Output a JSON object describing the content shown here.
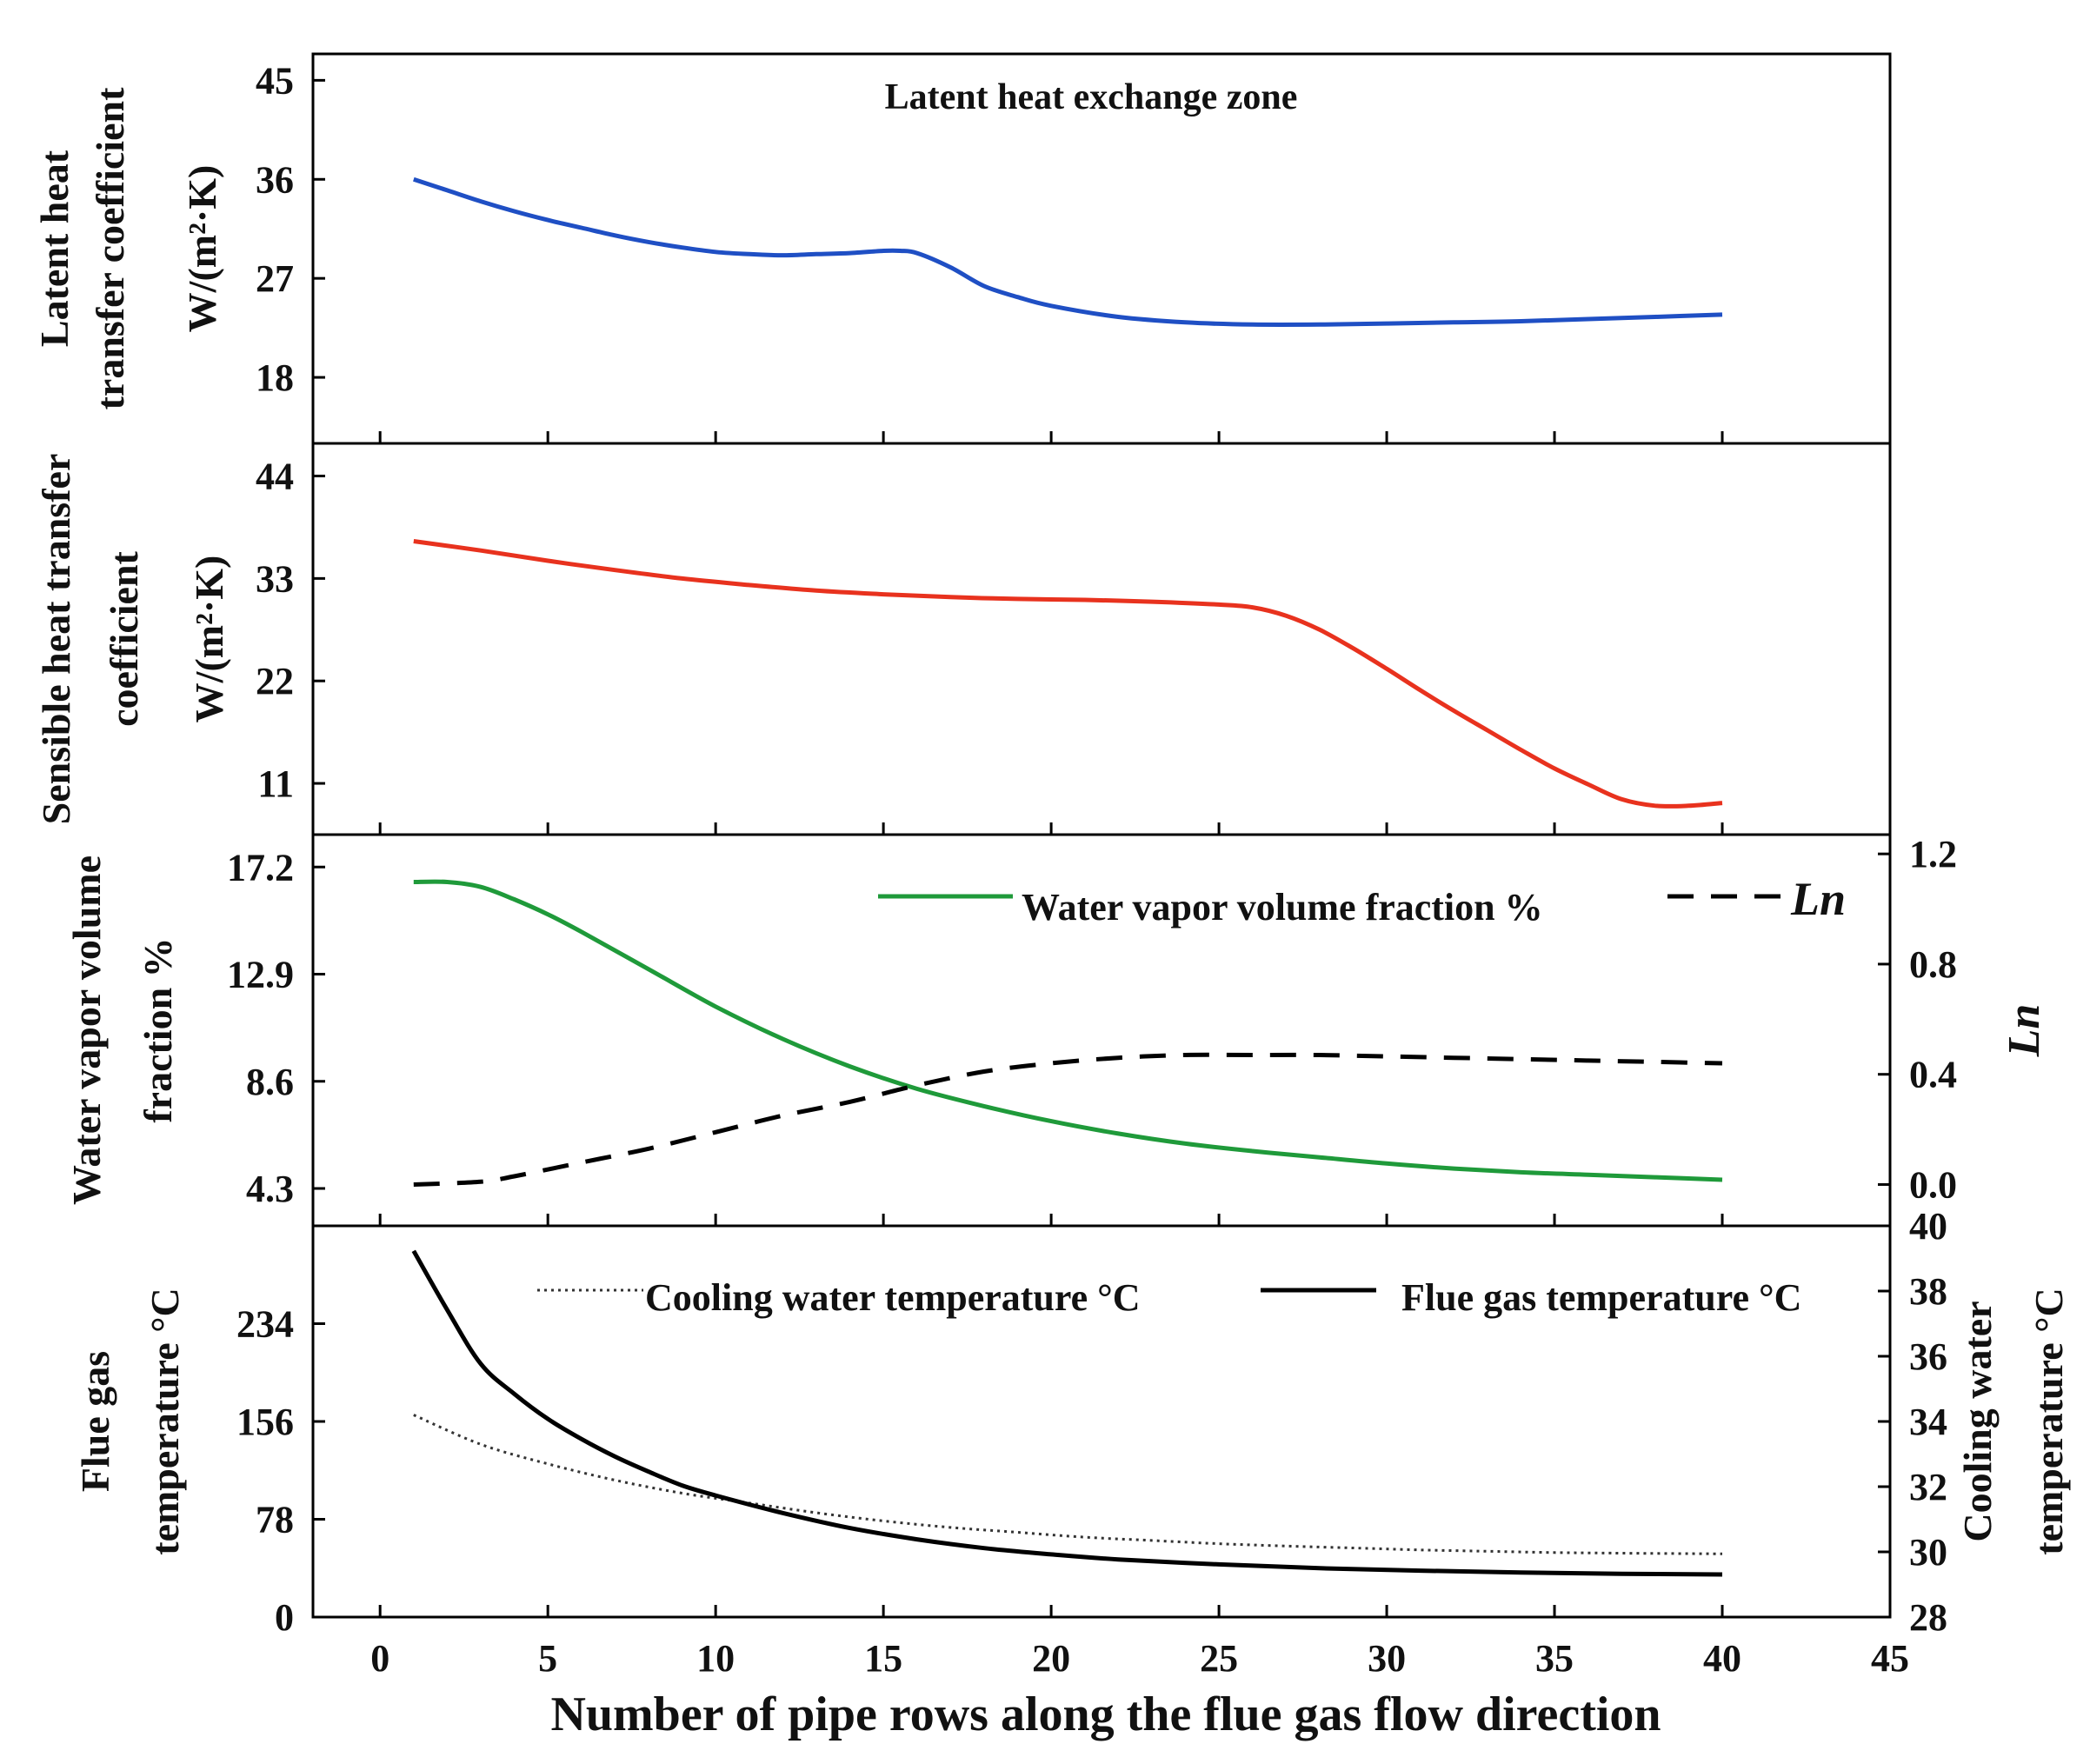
{
  "chart_data": {
    "type": "line",
    "xlabel": "Number of pipe rows along the flue gas flow direction",
    "xlim": [
      -2,
      45
    ],
    "xticks": [
      0,
      5,
      10,
      15,
      20,
      25,
      30,
      35,
      40,
      45
    ],
    "panels": [
      {
        "id": "latent",
        "ylabel_lines": [
          "Latent heat",
          "transfer coefficient",
          "W/(m²·K)"
        ],
        "ylim": [
          12,
          47.4
        ],
        "yticks": [
          18,
          27,
          36,
          45
        ],
        "annotation": "Latent heat exchange zone",
        "series": [
          {
            "name": "Latent heat transfer coefficient",
            "color": "#1f4fc4",
            "style": "solid",
            "x": [
              1,
              2,
              3,
              4,
              5,
              6,
              7,
              8,
              9,
              10,
              11,
              12,
              13,
              14,
              15,
              15.5,
              16,
              17,
              18,
              19,
              20,
              22,
              24,
              26,
              28,
              30,
              32,
              34,
              36,
              38,
              40
            ],
            "y": [
              36,
              35,
              34,
              33.1,
              32.3,
              31.6,
              30.9,
              30.3,
              29.8,
              29.4,
              29.2,
              29.1,
              29.2,
              29.3,
              29.5,
              29.5,
              29.3,
              28,
              26.3,
              25.3,
              24.5,
              23.5,
              23,
              22.8,
              22.8,
              22.9,
              23,
              23.1,
              23.3,
              23.5,
              23.7
            ]
          }
        ]
      },
      {
        "id": "sensible",
        "ylabel_lines": [
          "Sensible heat transfer",
          "coefficient",
          "W/(m²·K)"
        ],
        "ylim": [
          5.5,
          47.5
        ],
        "yticks": [
          11,
          22,
          33,
          44
        ],
        "series": [
          {
            "name": "Sensible heat transfer coefficient",
            "color": "#e8321e",
            "style": "solid",
            "x": [
              1,
              3,
              5,
              7,
              9,
              11,
              13,
              15,
              17,
              19,
              21,
              23,
              25,
              26,
              27,
              28,
              29,
              30,
              31,
              32,
              33,
              34,
              35,
              36,
              37,
              38,
              39,
              40
            ],
            "y": [
              37,
              36,
              34.9,
              33.9,
              33,
              32.3,
              31.7,
              31.3,
              31,
              30.8,
              30.7,
              30.5,
              30.2,
              29.9,
              29,
              27.5,
              25.5,
              23.3,
              21,
              18.8,
              16.7,
              14.6,
              12.6,
              10.9,
              9.3,
              8.6,
              8.6,
              8.9
            ]
          }
        ]
      },
      {
        "id": "vapor",
        "ylabel_lines": [
          "Water vapor volume",
          "fraction %"
        ],
        "right_ylabel": "Ln",
        "ylim": [
          2.8,
          18.5
        ],
        "yticks": [
          4.3,
          8.6,
          12.9,
          17.2
        ],
        "right_ylim": [
          -0.15,
          1.27
        ],
        "right_yticks": [
          "0.0",
          "0.4",
          "0.8",
          "1.2"
        ],
        "legend": [
          "Water vapor volume fraction %",
          "Ln"
        ],
        "series": [
          {
            "name": "Water vapor volume fraction %",
            "color": "#1f9a3a",
            "style": "solid",
            "axis": "left",
            "x": [
              1,
              2,
              3,
              4,
              5,
              6,
              8,
              10,
              12,
              14,
              16,
              18,
              20,
              22,
              24,
              26,
              28,
              30,
              32,
              34,
              36,
              38,
              40
            ],
            "y": [
              16.6,
              16.6,
              16.4,
              15.9,
              15.3,
              14.6,
              13.1,
              11.6,
              10.3,
              9.2,
              8.3,
              7.6,
              7,
              6.5,
              6.1,
              5.8,
              5.55,
              5.3,
              5.1,
              4.95,
              4.85,
              4.75,
              4.65
            ]
          },
          {
            "name": "Ln",
            "color": "#000000",
            "style": "dashed",
            "axis": "right",
            "x": [
              1,
              3,
              4,
              6,
              8,
              10,
              12,
              14,
              16,
              18,
              20,
              22,
              24,
              26,
              28,
              30,
              32,
              34,
              36,
              38,
              40
            ],
            "y": [
              0,
              0.01,
              0.03,
              0.08,
              0.13,
              0.19,
              0.25,
              0.3,
              0.36,
              0.41,
              0.44,
              0.46,
              0.47,
              0.47,
              0.47,
              0.465,
              0.46,
              0.455,
              0.45,
              0.445,
              0.44
            ]
          }
        ]
      },
      {
        "id": "temperature",
        "ylabel_lines": [
          "Flue gas",
          "temperature °C"
        ],
        "right_ylabel_lines": [
          "Cooling water",
          "temperature °C"
        ],
        "ylim": [
          0,
          312
        ],
        "yticks": [
          0,
          78,
          156,
          234
        ],
        "right_ylim": [
          28,
          40
        ],
        "right_yticks": [
          28,
          30,
          32,
          34,
          36,
          38,
          40
        ],
        "legend": [
          "Cooling water temperature °C",
          "Flue gas temperature °C"
        ],
        "series": [
          {
            "name": "Cooling water temperature °C",
            "color": "#333333",
            "style": "dotted",
            "axis": "right",
            "x": [
              1,
              3,
              5,
              7,
              9,
              11,
              13,
              15,
              17,
              19,
              21,
              23,
              25,
              27,
              29,
              31,
              33,
              35,
              37,
              40
            ],
            "y": [
              34.2,
              33.3,
              32.7,
              32.2,
              31.8,
              31.5,
              31.2,
              30.95,
              30.75,
              30.6,
              30.45,
              30.35,
              30.25,
              30.18,
              30.12,
              30.06,
              30.02,
              29.98,
              29.96,
              29.94
            ]
          },
          {
            "name": "Flue gas temperature °C",
            "color": "#000000",
            "style": "solid",
            "axis": "left",
            "x": [
              1,
              2,
              3,
              4,
              5,
              6,
              7,
              8,
              9,
              10,
              12,
              14,
              16,
              18,
              20,
              22,
              25,
              28,
              31,
              34,
              37,
              40
            ],
            "y": [
              292,
              245,
              202,
              178,
              158,
              142,
              128,
              116,
              105,
              97,
              83,
              71,
              62,
              55,
              50,
              46,
              42,
              39,
              37,
              35.5,
              34.5,
              34
            ]
          }
        ]
      }
    ]
  }
}
